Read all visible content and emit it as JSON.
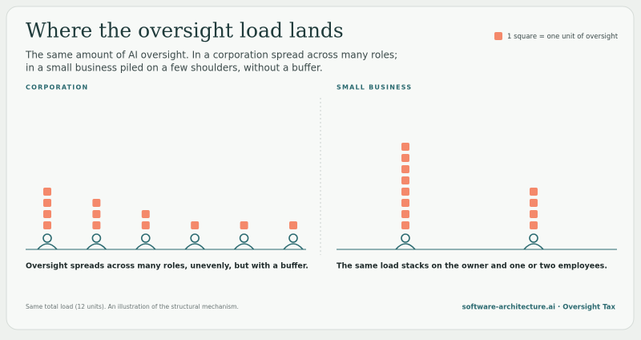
{
  "header": {
    "title": "Where the oversight load lands",
    "subtitle_lines": [
      "The same amount of AI oversight. In a corporation spread across many roles;",
      "in a small business piled on a few shoulders, without a buffer."
    ],
    "legend": "1 square = one unit of oversight"
  },
  "chart_data": [
    {
      "type": "pictogram",
      "title": "CORPORATION",
      "values": [
        4,
        3,
        2,
        1,
        1,
        1
      ],
      "color": "#f4896b",
      "caption": "Oversight spreads across many roles, unevenly, but with a buffer."
    },
    {
      "type": "pictogram",
      "title": "SMALL BUSINESS",
      "values": [
        8,
        4
      ],
      "color": "#f4896b",
      "caption": "The same load stacks on the owner and one or two employees."
    }
  ],
  "footer": {
    "note": "Same total load (12 units). An illustration of the structural mechanism.",
    "source": "software-architecture.ai · Oversight Tax"
  }
}
